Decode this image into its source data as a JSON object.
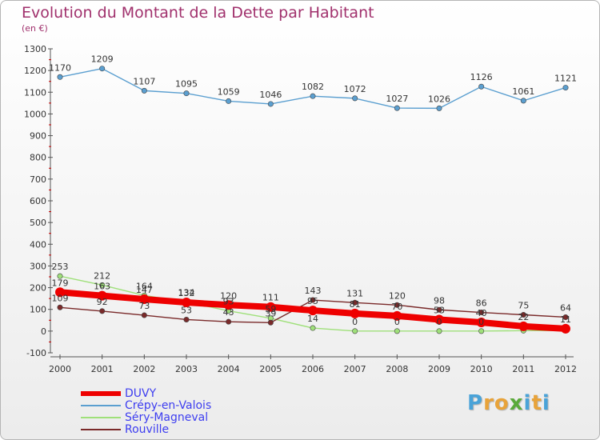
{
  "title": "Evolution du Montant de la Dette par Habitant",
  "subtitle": "(en €)",
  "logo": {
    "text": "Proxiti",
    "letter_colors": [
      "#4aa3d8",
      "#e8a33a",
      "#e8a33a",
      "#5aaa3a",
      "#4aa3d8",
      "#e8a33a",
      "#4aa3d8"
    ]
  },
  "chart_data": {
    "type": "line",
    "x": [
      "2000",
      "2001",
      "2002",
      "2003",
      "2004",
      "2005",
      "2006",
      "2007",
      "2008",
      "2009",
      "2010",
      "2011",
      "2012"
    ],
    "ylim": [
      -100,
      1300
    ],
    "yticks": [
      "-100",
      "0",
      "100",
      "200",
      "300",
      "400",
      "500",
      "600",
      "700",
      "800",
      "900",
      "1000",
      "1100",
      "1200",
      "1300"
    ],
    "grid": false,
    "legend_position": "bottom-left",
    "series": [
      {
        "name": "DUVY",
        "color": "#ee0000",
        "values": [
          179,
          163,
          147,
          132,
          120,
          111,
          95,
          81,
          70,
          53,
          40,
          22,
          11
        ],
        "labels": [
          "179",
          "163",
          "147",
          "132",
          "120",
          "111",
          "95",
          "81",
          "70",
          "53",
          "40",
          "22",
          "11"
        ]
      },
      {
        "name": "Crépy-en-Valois",
        "color": "#5b9fd0",
        "values": [
          1170,
          1209,
          1107,
          1095,
          1059,
          1046,
          1082,
          1072,
          1027,
          1026,
          1126,
          1061,
          1121
        ],
        "labels": [
          "1170",
          "1209",
          "1107",
          "1095",
          "1059",
          "1046",
          "1082",
          "1072",
          "1027",
          "1026",
          "1126",
          "1061",
          "1121"
        ]
      },
      {
        "name": "Séry-Magneval",
        "color": "#9fe07a",
        "values": [
          253,
          212,
          164,
          134,
          93,
          59,
          14,
          0,
          0,
          0,
          0,
          2,
          2
        ],
        "labels": [
          "253",
          "212",
          "164",
          "134",
          "93",
          "59",
          "14",
          "0",
          "0",
          "0",
          "0",
          "",
          ""
        ]
      },
      {
        "name": "Rouville",
        "color": "#7a2a2a",
        "values": [
          109,
          92,
          73,
          53,
          43,
          39,
          143,
          131,
          120,
          98,
          86,
          75,
          64
        ],
        "labels": [
          "109",
          "92",
          "73",
          "53",
          "43",
          "39",
          "143",
          "131",
          "120",
          "98",
          "86",
          "75",
          "64"
        ]
      }
    ]
  }
}
